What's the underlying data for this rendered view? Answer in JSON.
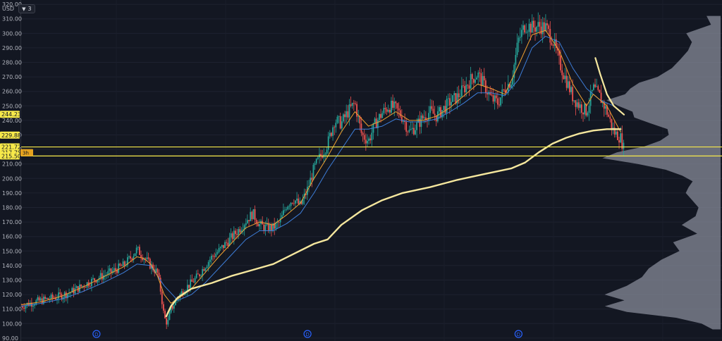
{
  "toolbar": {
    "currency": "USD",
    "layers_icon": "chevron-down-icon",
    "layers_count": "3"
  },
  "colors": {
    "background": "#131722",
    "up": "#26a69a",
    "down": "#ef5350",
    "ema_fast": "#f0a030",
    "ema_slow": "#3d7dd8",
    "long_ma": "#f5e79e",
    "hline": "#f7e94a",
    "volume_profile": "#8a8f9c",
    "event_marker": "#2962ff"
  },
  "chart_data": {
    "type": "candlestick",
    "y_ticks": [
      320,
      310,
      300,
      290,
      280,
      270,
      260,
      250,
      240,
      230,
      220,
      210,
      200,
      190,
      180,
      170,
      160,
      150,
      140,
      130,
      120,
      110,
      100,
      90
    ],
    "y_tick_labels": [
      "320.00",
      "310.00",
      "300.00",
      "290.00",
      "280.00",
      "270.00",
      "260.00",
      "250.00",
      "240.00",
      "230.00",
      "220.00",
      "210.00",
      "200.00",
      "190.00",
      "180.00",
      "170.00",
      "160.00",
      "150.00",
      "140.00",
      "130.00",
      "120.00",
      "110.00",
      "100.00",
      "90.00"
    ],
    "ylim": [
      88,
      322
    ],
    "x_range": [
      0,
      100
    ],
    "price_path": [
      [
        0,
        112
      ],
      [
        1.3,
        114
      ],
      [
        3,
        116
      ],
      [
        5,
        118
      ],
      [
        7,
        121
      ],
      [
        9,
        126
      ],
      [
        11,
        131
      ],
      [
        13,
        135
      ],
      [
        15,
        140
      ],
      [
        16,
        145
      ],
      [
        16.8,
        150
      ],
      [
        17,
        151
      ],
      [
        18,
        146
      ],
      [
        19,
        140
      ],
      [
        20,
        135
      ],
      [
        20.5,
        122
      ],
      [
        21,
        104
      ],
      [
        21.5,
        100
      ],
      [
        22,
        110
      ],
      [
        23,
        118
      ],
      [
        24,
        124
      ],
      [
        25,
        128
      ],
      [
        26,
        133
      ],
      [
        27,
        140
      ],
      [
        28,
        146
      ],
      [
        29,
        150
      ],
      [
        30,
        155
      ],
      [
        31,
        160
      ],
      [
        32,
        165
      ],
      [
        33,
        171
      ],
      [
        34,
        176
      ],
      [
        35,
        168
      ],
      [
        36,
        166
      ],
      [
        37,
        166
      ],
      [
        38,
        170
      ],
      [
        39,
        182
      ],
      [
        40,
        186
      ],
      [
        41,
        181
      ],
      [
        42,
        192
      ],
      [
        43,
        207
      ],
      [
        44,
        216
      ],
      [
        45,
        224
      ],
      [
        46,
        240
      ],
      [
        47,
        238
      ],
      [
        48,
        246
      ],
      [
        49,
        252
      ],
      [
        50,
        230
      ],
      [
        51,
        226
      ],
      [
        52,
        238
      ],
      [
        53,
        245
      ],
      [
        54,
        250
      ],
      [
        55,
        248
      ],
      [
        56,
        242
      ],
      [
        57,
        232
      ],
      [
        58,
        236
      ],
      [
        59,
        242
      ],
      [
        60,
        246
      ],
      [
        61,
        243
      ],
      [
        62,
        248
      ],
      [
        63,
        253
      ],
      [
        64,
        256
      ],
      [
        65,
        262
      ],
      [
        66,
        268
      ],
      [
        67,
        272
      ],
      [
        68,
        264
      ],
      [
        69,
        255
      ],
      [
        70,
        252
      ],
      [
        71,
        262
      ],
      [
        72,
        268
      ],
      [
        73,
        295
      ],
      [
        74,
        306
      ],
      [
        75,
        304
      ],
      [
        76,
        305
      ],
      [
        77,
        304
      ],
      [
        78,
        296
      ],
      [
        79,
        280
      ],
      [
        80,
        268
      ],
      [
        81,
        256
      ],
      [
        82,
        250
      ],
      [
        83,
        246
      ],
      [
        84,
        262
      ],
      [
        85,
        256
      ],
      [
        86,
        246
      ],
      [
        87,
        232
      ],
      [
        88,
        228
      ],
      [
        88.5,
        220
      ]
    ],
    "indicators": {
      "ema_fast_path": [
        [
          0,
          113
        ],
        [
          3,
          115
        ],
        [
          6,
          119
        ],
        [
          9,
          125
        ],
        [
          12,
          132
        ],
        [
          15,
          139
        ],
        [
          17,
          146
        ],
        [
          18,
          145
        ],
        [
          19,
          141
        ],
        [
          20,
          133
        ],
        [
          21,
          120
        ],
        [
          22,
          114
        ],
        [
          23,
          117
        ],
        [
          25,
          124
        ],
        [
          27,
          135
        ],
        [
          29,
          146
        ],
        [
          31,
          156
        ],
        [
          33,
          166
        ],
        [
          35,
          170
        ],
        [
          37,
          168
        ],
        [
          39,
          175
        ],
        [
          41,
          183
        ],
        [
          43,
          200
        ],
        [
          45,
          215
        ],
        [
          47,
          232
        ],
        [
          49,
          246
        ],
        [
          51,
          236
        ],
        [
          53,
          240
        ],
        [
          55,
          246
        ],
        [
          57,
          240
        ],
        [
          59,
          240
        ],
        [
          61,
          243
        ],
        [
          63,
          249
        ],
        [
          65,
          257
        ],
        [
          67,
          265
        ],
        [
          69,
          262
        ],
        [
          71,
          258
        ],
        [
          73,
          278
        ],
        [
          75,
          299
        ],
        [
          77,
          302
        ],
        [
          79,
          288
        ],
        [
          81,
          265
        ],
        [
          83,
          250
        ],
        [
          84,
          258
        ],
        [
          86,
          250
        ],
        [
          88,
          232
        ]
      ],
      "ema_slow_path": [
        [
          0,
          112
        ],
        [
          3,
          114
        ],
        [
          6,
          117
        ],
        [
          9,
          122
        ],
        [
          12,
          128
        ],
        [
          15,
          135
        ],
        [
          17,
          141
        ],
        [
          19,
          140
        ],
        [
          21,
          126
        ],
        [
          23,
          116
        ],
        [
          25,
          120
        ],
        [
          27,
          128
        ],
        [
          29,
          138
        ],
        [
          31,
          148
        ],
        [
          33,
          158
        ],
        [
          35,
          164
        ],
        [
          37,
          164
        ],
        [
          39,
          169
        ],
        [
          41,
          176
        ],
        [
          43,
          190
        ],
        [
          45,
          206
        ],
        [
          47,
          220
        ],
        [
          49,
          234
        ],
        [
          51,
          234
        ],
        [
          53,
          236
        ],
        [
          55,
          241
        ],
        [
          57,
          239
        ],
        [
          59,
          239
        ],
        [
          61,
          241
        ],
        [
          63,
          246
        ],
        [
          65,
          252
        ],
        [
          67,
          259
        ],
        [
          69,
          259
        ],
        [
          71,
          257
        ],
        [
          73,
          268
        ],
        [
          75,
          290
        ],
        [
          77,
          298
        ],
        [
          79,
          294
        ],
        [
          81,
          276
        ],
        [
          83,
          262
        ],
        [
          85,
          254
        ],
        [
          87,
          250
        ],
        [
          88,
          246
        ]
      ],
      "long_ma_path": [
        [
          21.3,
          105
        ],
        [
          22,
          112
        ],
        [
          23,
          118
        ],
        [
          25,
          124
        ],
        [
          28,
          128
        ],
        [
          31,
          133
        ],
        [
          34,
          137
        ],
        [
          37,
          141
        ],
        [
          40,
          148
        ],
        [
          43,
          155
        ],
        [
          45,
          158
        ],
        [
          47,
          168
        ],
        [
          50,
          178
        ],
        [
          53,
          185
        ],
        [
          56,
          190
        ],
        [
          60,
          194
        ],
        [
          64,
          199
        ],
        [
          68,
          203
        ],
        [
          72,
          207
        ],
        [
          74,
          211
        ],
        [
          76,
          218
        ],
        [
          78,
          224
        ],
        [
          80,
          228
        ],
        [
          82,
          231
        ],
        [
          84,
          233
        ],
        [
          86,
          234
        ],
        [
          88,
          234
        ]
      ],
      "down_trend_path": [
        [
          84.3,
          283
        ],
        [
          85,
          272
        ],
        [
          86,
          258
        ],
        [
          87,
          250
        ],
        [
          88.5,
          244
        ]
      ]
    },
    "horizontal_lines": [
      {
        "value": 221.72,
        "label": "221.72"
      },
      {
        "value": 215.5
      }
    ],
    "price_labels": [
      {
        "value": 244.23,
        "text": "244.23"
      },
      {
        "value": 229.88,
        "text": "229.88"
      },
      {
        "value": 221.72,
        "text": "221.72"
      },
      {
        "value": 217.78,
        "text": "217.78"
      },
      {
        "value": 215.5,
        "text": "215.50"
      }
    ],
    "last_price_badge": {
      "value": 217.78,
      "text": "3h"
    },
    "event_markers": [
      {
        "x": 12.5,
        "text": "D"
      },
      {
        "x": 47.5,
        "text": "D"
      },
      {
        "x": 82.5,
        "text": "D"
      }
    ],
    "volume_profile": [
      [
        312,
        0.06
      ],
      [
        306,
        0.14
      ],
      [
        300,
        0.2
      ],
      [
        294,
        0.26
      ],
      [
        288,
        0.24
      ],
      [
        282,
        0.3
      ],
      [
        276,
        0.38
      ],
      [
        270,
        0.5
      ],
      [
        266,
        0.62
      ],
      [
        262,
        0.7
      ],
      [
        258,
        0.8
      ],
      [
        254,
        0.9
      ],
      [
        250,
        0.8
      ],
      [
        246,
        0.72
      ],
      [
        242,
        0.64
      ],
      [
        238,
        0.5
      ],
      [
        234,
        0.4
      ],
      [
        230,
        0.34
      ],
      [
        226,
        0.42
      ],
      [
        222,
        0.6
      ],
      [
        218,
        0.78
      ],
      [
        214,
        0.92
      ],
      [
        210,
        0.7
      ],
      [
        206,
        0.44
      ],
      [
        202,
        0.32
      ],
      [
        198,
        0.26
      ],
      [
        194,
        0.22
      ],
      [
        190,
        0.24
      ],
      [
        186,
        0.22
      ],
      [
        180,
        0.18
      ],
      [
        174,
        0.2
      ],
      [
        168,
        0.26
      ],
      [
        162,
        0.24
      ],
      [
        156,
        0.3
      ],
      [
        150,
        0.36
      ],
      [
        144,
        0.44
      ],
      [
        138,
        0.54
      ],
      [
        132,
        0.62
      ],
      [
        126,
        0.72
      ],
      [
        120,
        0.86
      ],
      [
        116,
        0.74
      ],
      [
        112,
        0.84
      ],
      [
        108,
        0.66
      ],
      [
        104,
        0.34
      ],
      [
        100,
        0.12
      ],
      [
        96,
        0.05
      ]
    ]
  }
}
